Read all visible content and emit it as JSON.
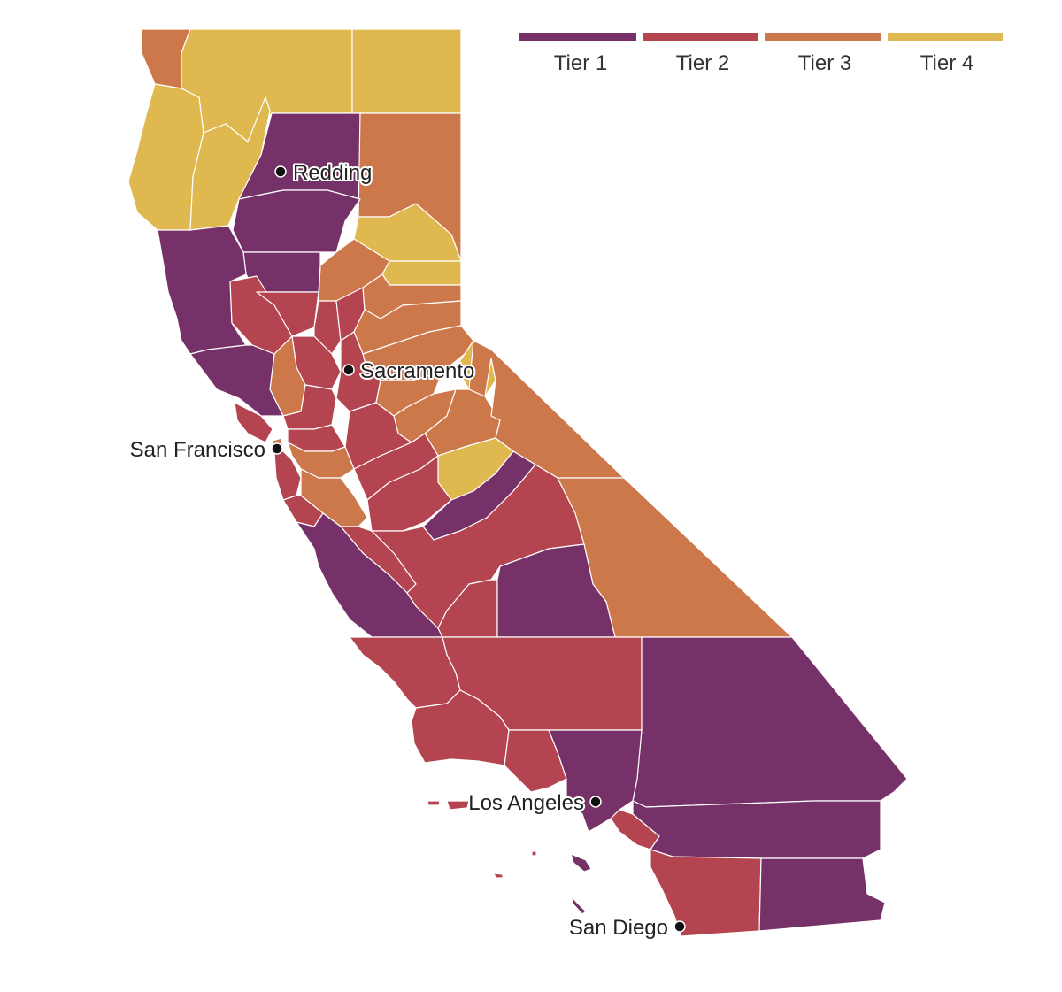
{
  "tier_colors": {
    "tier1": "#763268",
    "tier2": "#b4444f",
    "tier3": "#cc784b",
    "tier4": "#dfb850"
  },
  "legend": [
    {
      "label": "Tier 1",
      "color": "#763268"
    },
    {
      "label": "Tier 2",
      "color": "#b4444f"
    },
    {
      "label": "Tier 3",
      "color": "#cc784b"
    },
    {
      "label": "Tier 4",
      "color": "#dfb850"
    }
  ],
  "cities": [
    {
      "id": "redding",
      "label": "Redding"
    },
    {
      "id": "sacramento",
      "label": "Sacramento"
    },
    {
      "id": "san-francisco",
      "label": "San Francisco"
    },
    {
      "id": "los-angeles",
      "label": "Los Angeles"
    },
    {
      "id": "san-diego",
      "label": "San Diego"
    }
  ]
}
